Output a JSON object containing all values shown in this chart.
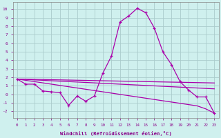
{
  "xlabel": "Windchill (Refroidissement éolien,°C)",
  "background_color": "#cff0ee",
  "grid_color": "#aacccc",
  "line_color": "#aa00aa",
  "x_values": [
    0,
    1,
    2,
    3,
    4,
    5,
    6,
    7,
    8,
    9,
    10,
    11,
    12,
    13,
    14,
    15,
    16,
    17,
    18,
    19,
    20,
    21,
    22,
    23
  ],
  "curve_main": [
    1.8,
    1.2,
    1.2,
    0.4,
    0.3,
    0.2,
    -1.3,
    -0.2,
    -0.8,
    -0.2,
    2.5,
    4.5,
    8.5,
    9.2,
    10.1,
    9.6,
    7.8,
    5.0,
    3.5,
    1.5,
    0.5,
    -0.3,
    -0.3,
    -2.2
  ],
  "line_flat1": [
    1.8,
    1.75,
    1.7,
    1.65,
    1.6,
    1.55,
    1.5,
    1.45,
    1.4,
    1.35,
    1.3,
    1.25,
    1.2,
    1.15,
    1.1,
    1.05,
    1.0,
    0.95,
    0.9,
    0.85,
    0.8,
    0.75,
    0.7,
    0.65
  ],
  "line_flat2": [
    1.8,
    1.78,
    1.76,
    1.74,
    1.72,
    1.7,
    1.68,
    1.66,
    1.64,
    1.62,
    1.6,
    1.58,
    1.56,
    1.54,
    1.52,
    1.5,
    1.48,
    1.46,
    1.44,
    1.42,
    1.4,
    1.38,
    1.36,
    1.34
  ],
  "line_diagonal": [
    1.8,
    1.65,
    1.5,
    1.35,
    1.2,
    1.05,
    0.9,
    0.75,
    0.6,
    0.45,
    0.3,
    0.15,
    0.0,
    -0.15,
    -0.3,
    -0.45,
    -0.6,
    -0.75,
    -0.9,
    -1.05,
    -1.2,
    -1.35,
    -1.7,
    -2.2
  ],
  "ylim": [
    -2.8,
    10.8
  ],
  "yticks": [
    -2,
    -1,
    0,
    1,
    2,
    3,
    4,
    5,
    6,
    7,
    8,
    9,
    10
  ],
  "fig_bg": "#cff0ee"
}
